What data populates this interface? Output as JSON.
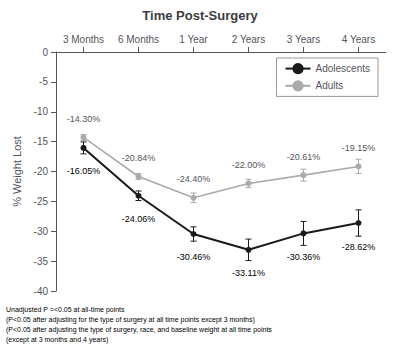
{
  "chart_data": {
    "type": "line",
    "title": "Time Post-Surgery",
    "y_label": "% Weight Lost",
    "categories": [
      "3 Months",
      "6 Months",
      "1 Year",
      "2 Years",
      "3 Years",
      "4 Years"
    ],
    "series": [
      {
        "name": "Adolescents",
        "color": "#1a1a1a",
        "marker": "circle",
        "values": [
          -16.05,
          -24.06,
          -30.46,
          -33.11,
          -30.36,
          -28.62
        ],
        "errors": [
          1.0,
          0.8,
          1.2,
          1.8,
          2.0,
          2.2
        ],
        "value_labels": [
          "-16.05%",
          "-24.06%",
          "-30.46%",
          "-33.11%",
          "-30.36%",
          "-28.62%"
        ]
      },
      {
        "name": "Adults",
        "color": "#aaaaaa",
        "marker": "circle",
        "values": [
          -14.3,
          -20.84,
          -24.4,
          -22.0,
          -20.61,
          -19.15
        ],
        "errors": [
          0.5,
          0.5,
          0.8,
          0.7,
          1.0,
          1.2
        ],
        "value_labels": [
          "-14.30%",
          "-20.84%",
          "-24.40%",
          "-22.00%",
          "-20.61%",
          "-19.15%"
        ]
      }
    ],
    "ylim": [
      -40,
      0
    ],
    "yticks": [
      0,
      -5,
      -10,
      -15,
      -20,
      -25,
      -30,
      -35,
      -40
    ],
    "grid": false,
    "legend": "upper right",
    "data_labels": true,
    "annotations": [
      "Unadjusted P =<0.05 at all-time points",
      "(P<0.05 after adjusting for the type of surgery at all time points except 3 months)",
      "(P<0.05 after adjusting the type of surgery, race, and baseline weight at all time points",
      "(except at 3 months and 4 years)"
    ]
  }
}
